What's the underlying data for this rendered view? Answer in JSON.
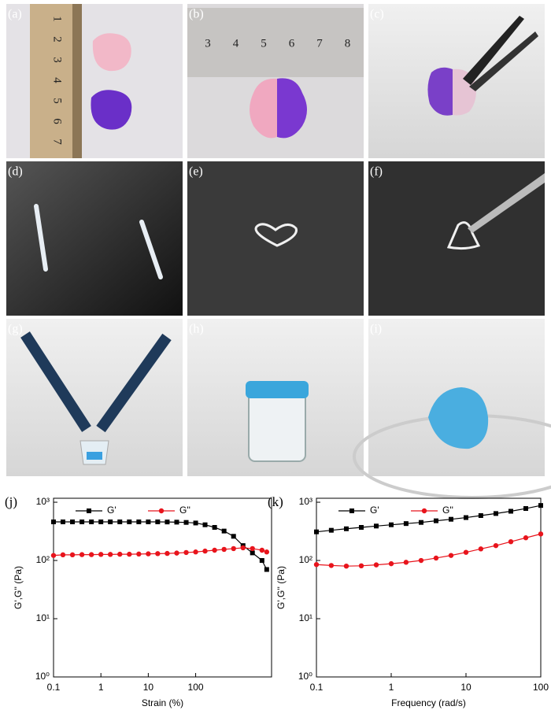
{
  "panels": {
    "labels": [
      "(a)",
      "(b)",
      "(c)",
      "(d)",
      "(e)",
      "(f)",
      "(g)",
      "(h)",
      "(i)"
    ],
    "ruler_a": [
      1,
      2,
      3,
      4,
      5,
      6,
      7
    ],
    "ruler_b": [
      3,
      4,
      5,
      6,
      7,
      8
    ]
  },
  "chart_data": [
    {
      "type": "line",
      "title": "(j)",
      "x_label": "Strain (%)",
      "y_label": "G',G'' (Pa)",
      "x_log": true,
      "y_log": true,
      "legend": "top-left",
      "xlim": [
        0.1,
        4000
      ],
      "ylim": [
        1,
        1170
      ],
      "xticks": [
        0.1,
        1,
        10,
        100
      ],
      "yticks": [
        {
          "value": 1,
          "label": "10⁰"
        },
        {
          "value": 10,
          "label": "10¹"
        },
        {
          "value": 100,
          "label": "10²"
        },
        {
          "value": 1000,
          "label": "10³"
        }
      ],
      "x": [
        0.1,
        0.158,
        0.251,
        0.398,
        0.631,
        1,
        1.58,
        2.51,
        3.98,
        6.31,
        10,
        15.8,
        25.1,
        39.8,
        63.1,
        100,
        158,
        251,
        398,
        631,
        1000,
        1580,
        2510,
        3160
      ],
      "series": [
        {
          "name": "G'",
          "color": "#000000",
          "marker": "square",
          "values": [
            460,
            460,
            460,
            460,
            460,
            460,
            460,
            460,
            460,
            460,
            460,
            460,
            458,
            455,
            450,
            440,
            410,
            370,
            320,
            260,
            180,
            135,
            100,
            70
          ]
        },
        {
          "name": "G''",
          "color": "#e8141c",
          "marker": "circle",
          "values": [
            122,
            125,
            125,
            126,
            126,
            127,
            127,
            128,
            128,
            129,
            130,
            131,
            132,
            134,
            137,
            140,
            145,
            150,
            155,
            160,
            165,
            160,
            150,
            140
          ]
        }
      ]
    },
    {
      "type": "line",
      "title": "(k)",
      "x_label": "Frequency (rad/s)",
      "y_label": "G',G'' (Pa)",
      "x_log": true,
      "y_log": true,
      "legend": "top-left",
      "xlim": [
        0.1,
        100
      ],
      "ylim": [
        1,
        1170
      ],
      "xticks": [
        0.1,
        1,
        10,
        100
      ],
      "yticks": [
        {
          "value": 1,
          "label": "10⁰"
        },
        {
          "value": 10,
          "label": "10¹"
        },
        {
          "value": 100,
          "label": "10²"
        },
        {
          "value": 1000,
          "label": "10³"
        }
      ],
      "x": [
        0.1,
        0.158,
        0.251,
        0.398,
        0.631,
        1,
        1.58,
        2.51,
        3.98,
        6.31,
        10,
        15.8,
        25.1,
        39.8,
        63.1,
        100
      ],
      "series": [
        {
          "name": "G'",
          "color": "#000000",
          "marker": "square",
          "values": [
            310,
            330,
            350,
            370,
            390,
            410,
            430,
            450,
            480,
            510,
            545,
            590,
            640,
            700,
            780,
            880
          ]
        },
        {
          "name": "G''",
          "color": "#e8141c",
          "marker": "circle",
          "values": [
            85,
            82,
            80,
            81,
            84,
            88,
            93,
            100,
            110,
            122,
            138,
            158,
            180,
            210,
            245,
            285
          ]
        }
      ]
    }
  ]
}
